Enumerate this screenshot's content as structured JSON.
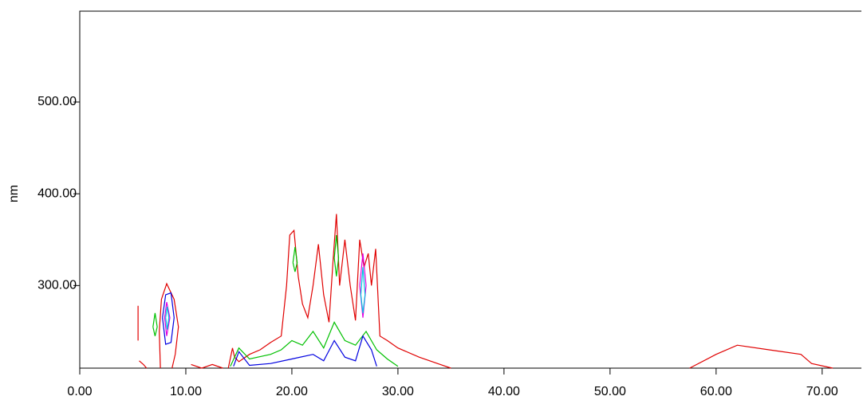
{
  "chart_data": {
    "type": "contour",
    "y_label": "nm",
    "xlim": [
      0,
      73.7
    ],
    "ylim": [
      210,
      599
    ],
    "xticks": [
      {
        "value": 0,
        "label": "0.00"
      },
      {
        "value": 10,
        "label": "10.00"
      },
      {
        "value": 20,
        "label": "20.00"
      },
      {
        "value": 30,
        "label": "30.00"
      },
      {
        "value": 40,
        "label": "40.00"
      },
      {
        "value": 50,
        "label": "50.00"
      },
      {
        "value": 60,
        "label": "60.00"
      },
      {
        "value": 70,
        "label": "70.00"
      }
    ],
    "yticks": [
      {
        "value": 300,
        "label": "300.00"
      },
      {
        "value": 400,
        "label": "400.00"
      },
      {
        "value": 500,
        "label": "500.00"
      }
    ],
    "series": [
      {
        "color": "#e00000",
        "x": [
          5.5,
          5.5,
          null,
          5.6,
          6.0,
          6.3,
          null,
          7.6,
          7.5,
          7.7,
          8.2,
          8.9,
          9.3,
          9.0,
          8.7,
          null,
          10.5,
          11.5,
          12.5,
          13.5,
          null,
          14.0,
          14.4,
          14.6,
          15.0,
          16.0,
          17.0,
          18.0,
          19.0,
          19.5,
          19.8,
          20.2,
          20.6,
          21.0,
          21.5,
          22.0,
          22.5,
          23.0,
          23.5,
          23.9,
          24.2,
          24.5,
          25.0,
          25.5,
          26.0,
          26.4,
          26.8,
          27.2,
          27.5,
          27.9,
          28.3,
          29.0,
          30.0,
          32.0,
          34.0,
          35.0,
          null,
          57.5,
          60.0,
          62.0,
          65.0,
          68.0,
          69.0,
          71.0
        ],
        "y": [
          240,
          278,
          null,
          218,
          214,
          210,
          null,
          210,
          250,
          285,
          302,
          285,
          255,
          225,
          210,
          null,
          214,
          210,
          214,
          210,
          null,
          210,
          232,
          222,
          217,
          225,
          230,
          238,
          245,
          300,
          355,
          360,
          310,
          280,
          265,
          300,
          345,
          290,
          260,
          330,
          378,
          300,
          350,
          300,
          262,
          350,
          320,
          335,
          300,
          340,
          245,
          240,
          232,
          222,
          214,
          210,
          null,
          210,
          225,
          235,
          230,
          225,
          215,
          210
        ]
      },
      {
        "color": "#00c000",
        "x": [
          14.2,
          15.0,
          16.0,
          18.0,
          19.0,
          20.0,
          21.0,
          22.0,
          23.0,
          24.0,
          25.0,
          26.0,
          27.0,
          28.0,
          29.0,
          30.0,
          null,
          20.1,
          20.3,
          20.5,
          20.3,
          20.1,
          null,
          6.9,
          7.1,
          7.3,
          7.1,
          6.9,
          null,
          24.0,
          24.2,
          24.4,
          24.2,
          24.0
        ],
        "y": [
          212,
          232,
          220,
          225,
          230,
          240,
          235,
          250,
          232,
          260,
          240,
          235,
          250,
          230,
          220,
          212,
          null,
          325,
          342,
          325,
          315,
          325,
          null,
          255,
          270,
          255,
          245,
          255,
          null,
          330,
          355,
          330,
          310,
          330
        ]
      },
      {
        "color": "#0000e0",
        "x": [
          14.5,
          15.0,
          16.0,
          18.0,
          20.0,
          22.0,
          23.0,
          24.0,
          25.0,
          26.0,
          26.7,
          27.5,
          28.0,
          null,
          7.8,
          8.1,
          8.6,
          8.9,
          8.6,
          8.1,
          7.8
        ],
        "y": [
          212,
          228,
          213,
          215,
          220,
          225,
          218,
          240,
          222,
          218,
          245,
          230,
          212,
          null,
          265,
          290,
          292,
          265,
          238,
          236,
          265
        ]
      },
      {
        "color": "#e000e0",
        "x": [
          26.4,
          26.7,
          27.0,
          26.7,
          26.4,
          null,
          8.0,
          8.2,
          8.5,
          8.2,
          8.0
        ],
        "y": [
          300,
          335,
          300,
          265,
          300,
          null,
          265,
          282,
          265,
          245,
          265
        ]
      },
      {
        "color": "#00c0e0",
        "x": [
          26.5,
          26.7,
          26.9,
          26.7,
          26.5,
          null,
          8.1,
          8.25,
          8.4,
          8.25,
          8.1
        ],
        "y": [
          290,
          320,
          290,
          270,
          290,
          null,
          265,
          277,
          265,
          252,
          265
        ]
      }
    ]
  }
}
